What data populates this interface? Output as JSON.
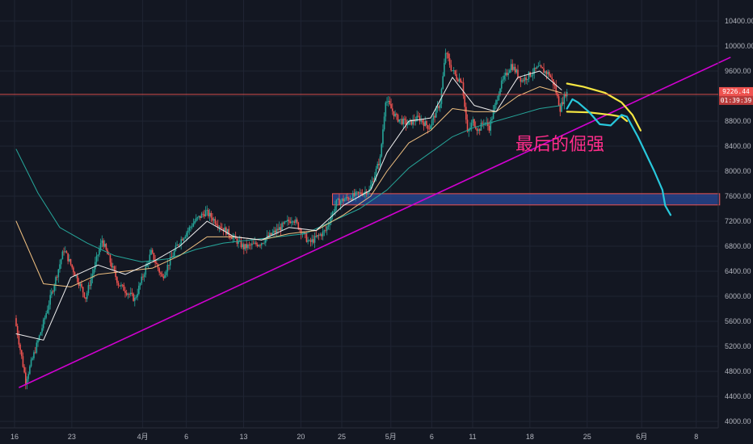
{
  "chart_data": {
    "type": "candlestick",
    "title": "",
    "colors": {
      "background": "#131722",
      "up": "#26a69a",
      "down": "#ef5350",
      "trendline": "#d000d0",
      "zone_fill": "#2a4a9a",
      "zone_border": "#ef5350",
      "price_line": "#ef5350",
      "projection_yellow": "#f5e642",
      "projection_cyan": "#28c8dc",
      "ma_fast": "#f0f0f0",
      "ma_mid": "#f0c080",
      "ma_slow": "#26a69a",
      "annotation": "#ff2d8a"
    },
    "y_axis": {
      "range": [
        3900,
        10650
      ],
      "ticks": [
        "4000.00",
        "4400.00",
        "4800.00",
        "5200.00",
        "5600.00",
        "6000.00",
        "6400.00",
        "6800.00",
        "7200.00",
        "7600.00",
        "8000.00",
        "8400.00",
        "8800.00",
        "9200.00",
        "9600.00",
        "10000.00",
        "10400.00"
      ]
    },
    "x_axis": {
      "range": [
        0,
        127
      ],
      "ticks": [
        {
          "label": "16",
          "x": 0
        },
        {
          "label": "23",
          "x": 10.5
        },
        {
          "label": "4月",
          "x": 23.5
        },
        {
          "label": "6",
          "x": 31.5
        },
        {
          "label": "13",
          "x": 42
        },
        {
          "label": "20",
          "x": 52.5
        },
        {
          "label": "25",
          "x": 60
        },
        {
          "label": "5月",
          "x": 69
        },
        {
          "label": "6",
          "x": 76.5
        },
        {
          "label": "11",
          "x": 84
        },
        {
          "label": "18",
          "x": 94.5
        },
        {
          "label": "25",
          "x": 105
        },
        {
          "label": "6月",
          "x": 115
        },
        {
          "label": "8",
          "x": 125
        }
      ]
    },
    "last_price": {
      "value": 9226.44,
      "label": "9226.44",
      "timer": "01:39:39"
    },
    "support_zone": {
      "x": [
        58,
        129
      ],
      "y": [
        7460,
        7640
      ]
    },
    "trendline": {
      "start": [
        0.5,
        4540
      ],
      "end": [
        131,
        9820
      ]
    },
    "key_points": [
      {
        "x": 0,
        "y": 5650
      },
      {
        "x": 2,
        "y": 4650
      },
      {
        "x": 5,
        "y": 5500
      },
      {
        "x": 9,
        "y": 6750
      },
      {
        "x": 13,
        "y": 5980
      },
      {
        "x": 16,
        "y": 6900
      },
      {
        "x": 19,
        "y": 6200
      },
      {
        "x": 22,
        "y": 5950
      },
      {
        "x": 25,
        "y": 6700
      },
      {
        "x": 27,
        "y": 6300
      },
      {
        "x": 30,
        "y": 6850
      },
      {
        "x": 33,
        "y": 7200
      },
      {
        "x": 35,
        "y": 7350
      },
      {
        "x": 38,
        "y": 7100
      },
      {
        "x": 42,
        "y": 6780
      },
      {
        "x": 45,
        "y": 6850
      },
      {
        "x": 48,
        "y": 7050
      },
      {
        "x": 51,
        "y": 7250
      },
      {
        "x": 54,
        "y": 6850
      },
      {
        "x": 57,
        "y": 7050
      },
      {
        "x": 59,
        "y": 7500
      },
      {
        "x": 62,
        "y": 7600
      },
      {
        "x": 65,
        "y": 7700
      },
      {
        "x": 67,
        "y": 8200
      },
      {
        "x": 68,
        "y": 9150
      },
      {
        "x": 70,
        "y": 8850
      },
      {
        "x": 72,
        "y": 8750
      },
      {
        "x": 74,
        "y": 8850
      },
      {
        "x": 76,
        "y": 8700
      },
      {
        "x": 78,
        "y": 9100
      },
      {
        "x": 79,
        "y": 9900
      },
      {
        "x": 80,
        "y": 9650
      },
      {
        "x": 81,
        "y": 9500
      },
      {
        "x": 82,
        "y": 9450
      },
      {
        "x": 83,
        "y": 8600
      },
      {
        "x": 84,
        "y": 8800
      },
      {
        "x": 85,
        "y": 8650
      },
      {
        "x": 86,
        "y": 8800
      },
      {
        "x": 87,
        "y": 8700
      },
      {
        "x": 89,
        "y": 9350
      },
      {
        "x": 91,
        "y": 9700
      },
      {
        "x": 93,
        "y": 9450
      },
      {
        "x": 96,
        "y": 9650
      },
      {
        "x": 98,
        "y": 9550
      },
      {
        "x": 99,
        "y": 9350
      },
      {
        "x": 100,
        "y": 9000
      },
      {
        "x": 101,
        "y": 9250
      }
    ],
    "ma_fast": [
      [
        0,
        5400
      ],
      [
        5,
        5300
      ],
      [
        10,
        6300
      ],
      [
        15,
        6500
      ],
      [
        20,
        6350
      ],
      [
        25,
        6550
      ],
      [
        30,
        6800
      ],
      [
        35,
        7200
      ],
      [
        40,
        6950
      ],
      [
        45,
        6900
      ],
      [
        50,
        7100
      ],
      [
        55,
        7050
      ],
      [
        60,
        7450
      ],
      [
        65,
        7700
      ],
      [
        68,
        8300
      ],
      [
        72,
        8800
      ],
      [
        76,
        8850
      ],
      [
        80,
        9500
      ],
      [
        84,
        9050
      ],
      [
        88,
        8950
      ],
      [
        92,
        9500
      ],
      [
        96,
        9600
      ],
      [
        100,
        9300
      ]
    ],
    "ma_mid": [
      [
        0,
        7200
      ],
      [
        5,
        6200
      ],
      [
        10,
        6150
      ],
      [
        15,
        6350
      ],
      [
        20,
        6400
      ],
      [
        25,
        6450
      ],
      [
        30,
        6650
      ],
      [
        35,
        6950
      ],
      [
        40,
        6950
      ],
      [
        45,
        6900
      ],
      [
        50,
        7000
      ],
      [
        55,
        7050
      ],
      [
        60,
        7300
      ],
      [
        65,
        7600
      ],
      [
        68,
        8000
      ],
      [
        72,
        8450
      ],
      [
        76,
        8650
      ],
      [
        80,
        9000
      ],
      [
        84,
        8950
      ],
      [
        88,
        8950
      ],
      [
        92,
        9200
      ],
      [
        96,
        9350
      ],
      [
        100,
        9250
      ]
    ],
    "ma_slow": [
      [
        0,
        8350
      ],
      [
        4,
        7650
      ],
      [
        8,
        7100
      ],
      [
        13,
        6850
      ],
      [
        18,
        6650
      ],
      [
        23,
        6550
      ],
      [
        28,
        6600
      ],
      [
        33,
        6750
      ],
      [
        38,
        6850
      ],
      [
        43,
        6900
      ],
      [
        48,
        6950
      ],
      [
        53,
        7000
      ],
      [
        58,
        7200
      ],
      [
        63,
        7400
      ],
      [
        68,
        7700
      ],
      [
        72,
        8050
      ],
      [
        76,
        8300
      ],
      [
        80,
        8550
      ],
      [
        84,
        8700
      ],
      [
        88,
        8800
      ],
      [
        92,
        8900
      ],
      [
        96,
        9000
      ],
      [
        100,
        9050
      ]
    ],
    "projection_yellow_top": [
      [
        101,
        9400
      ],
      [
        104,
        9350
      ],
      [
        108,
        9250
      ],
      [
        111,
        9100
      ],
      [
        113,
        8900
      ],
      [
        114.5,
        8650
      ]
    ],
    "projection_yellow_bottom": [
      [
        101,
        8950
      ],
      [
        105,
        8940
      ],
      [
        109,
        8900
      ],
      [
        111,
        8870
      ],
      [
        112,
        8800
      ]
    ],
    "projection_cyan": [
      [
        101,
        9000
      ],
      [
        102,
        9150
      ],
      [
        103,
        9100
      ],
      [
        105,
        8950
      ],
      [
        107,
        8750
      ],
      [
        109,
        8730
      ],
      [
        111,
        8900
      ],
      [
        112,
        8870
      ],
      [
        114,
        8550
      ],
      [
        117,
        8000
      ],
      [
        118.5,
        7700
      ],
      [
        119,
        7450
      ],
      [
        120,
        7300
      ]
    ]
  },
  "annotation": {
    "text": "最后的倔强"
  }
}
